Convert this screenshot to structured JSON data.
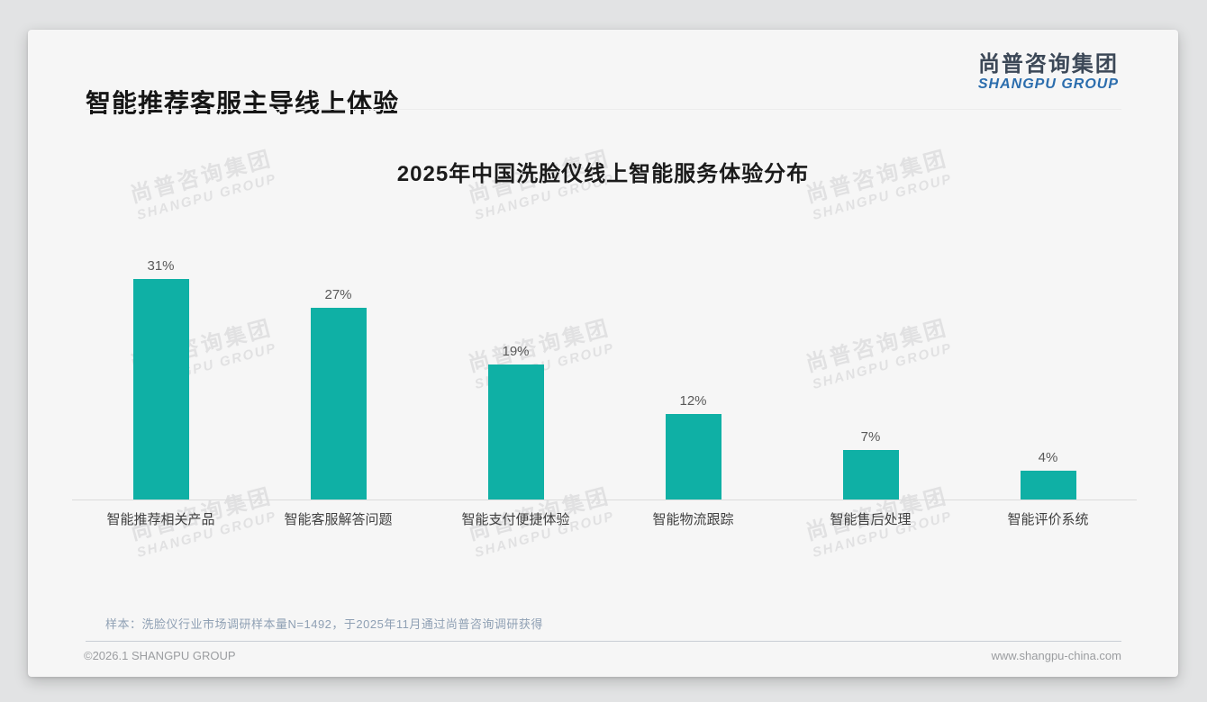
{
  "page": {
    "title": "智能推荐客服主导线上体验",
    "logo": {
      "cn": "尚普咨询集团",
      "en": "SHANGPU GROUP"
    },
    "watermark": {
      "cn": "尚普咨询集团",
      "en": "SHANGPU GROUP"
    },
    "note": "样本：洗脸仪行业市场调研样本量N=1492，于2025年11月通过尚普咨询调研获得",
    "footer_left": "©2026.1 SHANGPU GROUP",
    "footer_right": "www.shangpu-china.com"
  },
  "chart_data": {
    "type": "bar",
    "title": "2025年中国洗脸仪线上智能服务体验分布",
    "categories": [
      "智能推荐相关产品",
      "智能客服解答问题",
      "智能支付便捷体验",
      "智能物流跟踪",
      "智能售后处理",
      "智能评价系统"
    ],
    "values": [
      31,
      27,
      19,
      12,
      7,
      4
    ],
    "data_labels": [
      "31%",
      "27%",
      "19%",
      "12%",
      "7%",
      "4%"
    ],
    "unit": "%",
    "ylim": [
      0,
      33
    ],
    "bar_color": "#0FB0A5",
    "grid": false,
    "legend": false,
    "value_labels_position": "above"
  }
}
